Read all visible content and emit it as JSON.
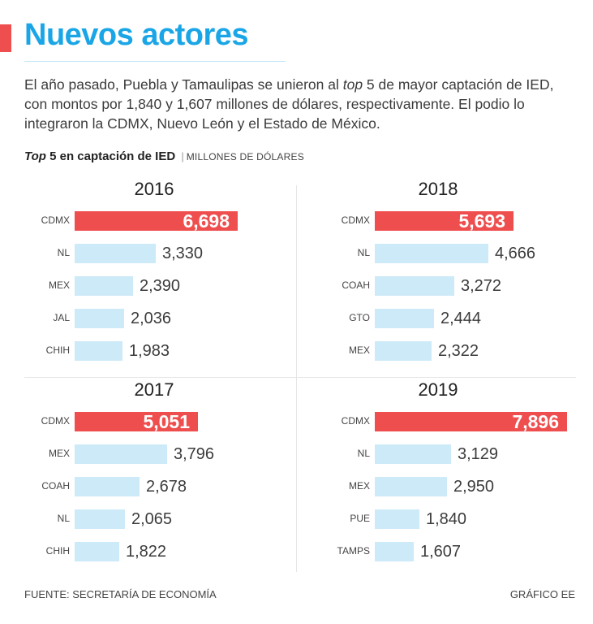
{
  "header": {
    "title": "Nuevos actores",
    "intro_before": "El año pasado, Puebla y Tamaulipas se unieron al ",
    "intro_italic": "top",
    "intro_after": " 5 de mayor captación de IED, con montos por 1,840 y 1,607 millones de dólares, respectivamente. El podio lo integraron la CDMX, Nuevo León y el Estado de México."
  },
  "subtitle": {
    "top_label": "Top",
    "main": " 5 en captación de IED",
    "separator": "|",
    "units": "MILLONES DE DÓLARES"
  },
  "colors": {
    "title": "#1aa6e6",
    "highlight": "#ef4e4e",
    "bar": "#cdeaf8"
  },
  "chart_data": [
    {
      "type": "bar",
      "orientation": "horizontal",
      "title": "2016",
      "categories": [
        "CDMX",
        "NL",
        "MEX",
        "JAL",
        "CHIH"
      ],
      "values": [
        6698,
        3330,
        2390,
        2036,
        1983
      ],
      "labels": [
        "6,698",
        "3,330",
        "2,390",
        "2,036",
        "1,983"
      ],
      "highlight_index": 0,
      "xlim": [
        0,
        8000
      ]
    },
    {
      "type": "bar",
      "orientation": "horizontal",
      "title": "2018",
      "categories": [
        "CDMX",
        "NL",
        "COAH",
        "GTO",
        "MEX"
      ],
      "values": [
        5693,
        4666,
        3272,
        2444,
        2322
      ],
      "labels": [
        "5,693",
        "4,666",
        "3,272",
        "2,444",
        "2,322"
      ],
      "highlight_index": 0,
      "xlim": [
        0,
        8000
      ]
    },
    {
      "type": "bar",
      "orientation": "horizontal",
      "title": "2017",
      "categories": [
        "CDMX",
        "MEX",
        "COAH",
        "NL",
        "CHIH"
      ],
      "values": [
        5051,
        3796,
        2678,
        2065,
        1822
      ],
      "labels": [
        "5,051",
        "3,796",
        "2,678",
        "2,065",
        "1,822"
      ],
      "highlight_index": 0,
      "xlim": [
        0,
        8000
      ]
    },
    {
      "type": "bar",
      "orientation": "horizontal",
      "title": "2019",
      "categories": [
        "CDMX",
        "NL",
        "MEX",
        "PUE",
        "TAMPS"
      ],
      "values": [
        7896,
        3129,
        2950,
        1840,
        1607
      ],
      "labels": [
        "7,896",
        "3,129",
        "2,950",
        "1,840",
        "1,607"
      ],
      "highlight_index": 0,
      "xlim": [
        0,
        8000
      ]
    }
  ],
  "footer": {
    "source": "FUENTE: SECRETARÍA DE ECONOMÍA",
    "credit": "GRÁFICO EE"
  }
}
